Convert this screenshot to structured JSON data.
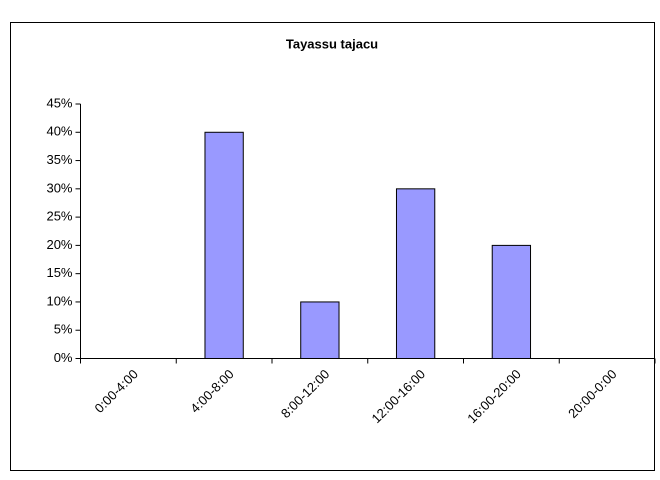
{
  "chart_data": {
    "type": "bar",
    "title": "Tayassu tajacu",
    "categories": [
      "0:00-4:00",
      "4:00-8:00",
      "8:00-12:00",
      "12:00-16:00",
      "16:00-20:00",
      "20:00-0:00"
    ],
    "values": [
      0,
      40,
      10,
      30,
      20,
      0
    ],
    "color": "#9999ff",
    "ylim": [
      0,
      45
    ],
    "yticks": [
      {
        "value": 0,
        "label": "0%"
      },
      {
        "value": 5,
        "label": "5%"
      },
      {
        "value": 10,
        "label": "10%"
      },
      {
        "value": 15,
        "label": "15%"
      },
      {
        "value": 20,
        "label": "20%"
      },
      {
        "value": 25,
        "label": "25%"
      },
      {
        "value": 30,
        "label": "30%"
      },
      {
        "value": 35,
        "label": "35%"
      },
      {
        "value": 40,
        "label": "40%"
      },
      {
        "value": 45,
        "label": "45%"
      }
    ],
    "grid": false
  }
}
